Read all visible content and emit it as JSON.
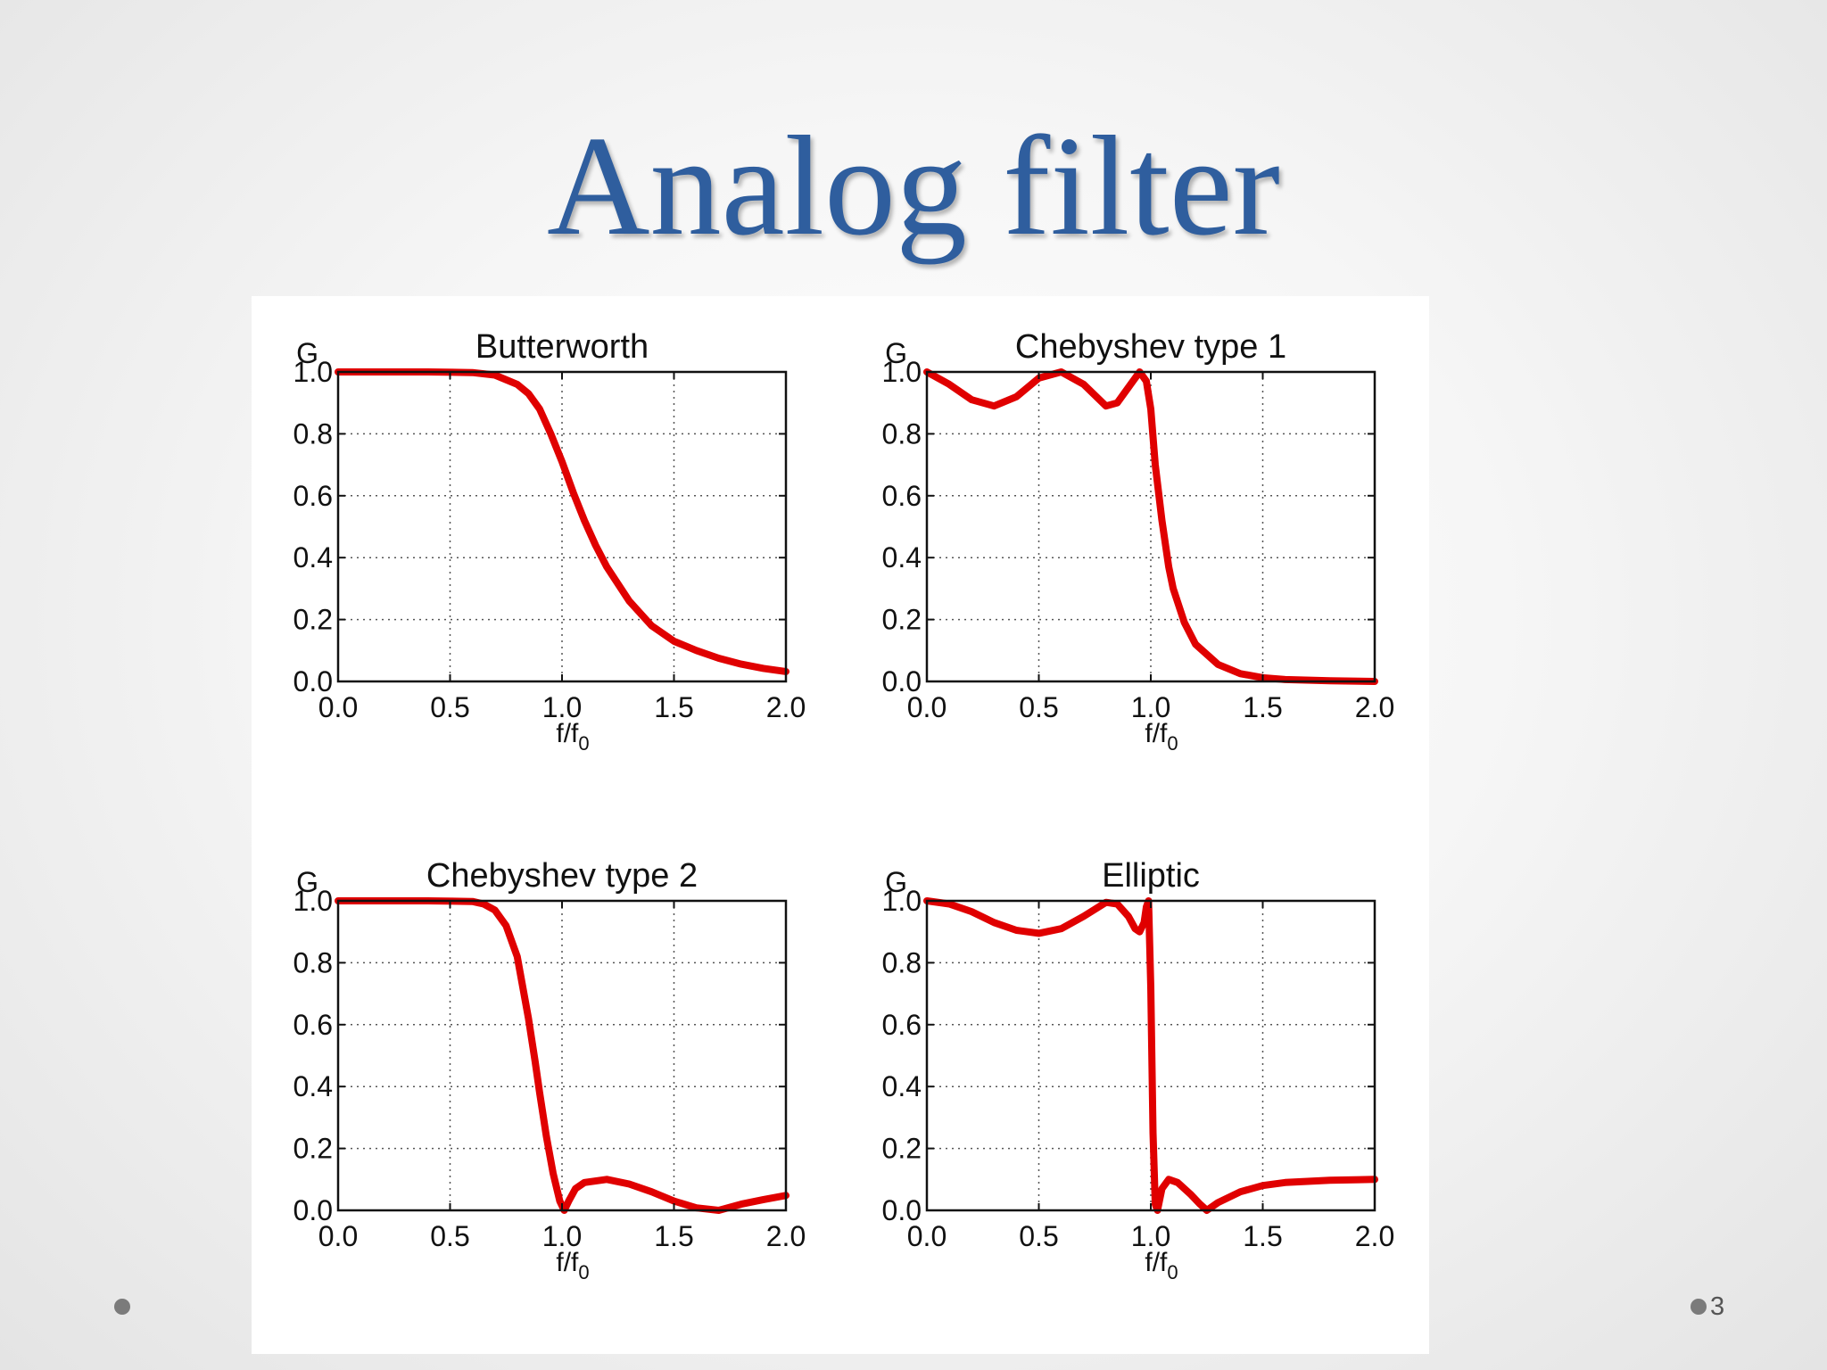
{
  "slide": {
    "title": "Analog filter",
    "page_number": "3"
  },
  "chart_data": [
    {
      "type": "line",
      "title": "Butterworth",
      "xlabel": "f/f",
      "xlabel_subscript": "0",
      "ylabel": "G",
      "xlim": [
        0.0,
        2.0
      ],
      "ylim": [
        0.0,
        1.0
      ],
      "xticks": [
        "0.0",
        "0.5",
        "1.0",
        "1.5",
        "2.0"
      ],
      "yticks": [
        "0.0",
        "0.2",
        "0.4",
        "0.6",
        "0.8",
        "1.0"
      ],
      "grid": true,
      "line_color": "#e00000",
      "series": [
        {
          "x": [
            0.0,
            0.4,
            0.6,
            0.7,
            0.8,
            0.85,
            0.9,
            0.95,
            1.0,
            1.05,
            1.1,
            1.15,
            1.2,
            1.3,
            1.4,
            1.5,
            1.6,
            1.7,
            1.8,
            1.9,
            2.0
          ],
          "y": [
            1.0,
            1.0,
            0.998,
            0.99,
            0.96,
            0.93,
            0.88,
            0.8,
            0.71,
            0.61,
            0.52,
            0.44,
            0.37,
            0.26,
            0.18,
            0.13,
            0.1,
            0.075,
            0.056,
            0.042,
            0.032
          ]
        }
      ]
    },
    {
      "type": "line",
      "title": "Chebyshev type 1",
      "xlabel": "f/f",
      "xlabel_subscript": "0",
      "ylabel": "G",
      "xlim": [
        0.0,
        2.0
      ],
      "ylim": [
        0.0,
        1.0
      ],
      "xticks": [
        "0.0",
        "0.5",
        "1.0",
        "1.5",
        "2.0"
      ],
      "yticks": [
        "0.0",
        "0.2",
        "0.4",
        "0.6",
        "0.8",
        "1.0"
      ],
      "grid": true,
      "line_color": "#e00000",
      "series": [
        {
          "x": [
            0.0,
            0.1,
            0.2,
            0.3,
            0.4,
            0.5,
            0.6,
            0.7,
            0.8,
            0.85,
            0.9,
            0.95,
            0.98,
            1.0,
            1.02,
            1.05,
            1.08,
            1.1,
            1.15,
            1.2,
            1.3,
            1.4,
            1.5,
            1.6,
            1.8,
            2.0
          ],
          "y": [
            1.0,
            0.96,
            0.91,
            0.89,
            0.92,
            0.98,
            1.0,
            0.96,
            0.89,
            0.9,
            0.95,
            1.0,
            0.97,
            0.88,
            0.7,
            0.52,
            0.37,
            0.3,
            0.19,
            0.12,
            0.055,
            0.025,
            0.012,
            0.006,
            0.002,
            0.0
          ]
        }
      ]
    },
    {
      "type": "line",
      "title": "Chebyshev type 2",
      "xlabel": "f/f",
      "xlabel_subscript": "0",
      "ylabel": "G",
      "xlim": [
        0.0,
        2.0
      ],
      "ylim": [
        0.0,
        1.0
      ],
      "xticks": [
        "0.0",
        "0.5",
        "1.0",
        "1.5",
        "2.0"
      ],
      "yticks": [
        "0.0",
        "0.2",
        "0.4",
        "0.6",
        "0.8",
        "1.0"
      ],
      "grid": true,
      "line_color": "#e00000",
      "series": [
        {
          "x": [
            0.0,
            0.4,
            0.6,
            0.65,
            0.7,
            0.75,
            0.8,
            0.85,
            0.88,
            0.9,
            0.93,
            0.96,
            0.99,
            1.01,
            1.03,
            1.06,
            1.1,
            1.2,
            1.3,
            1.4,
            1.5,
            1.6,
            1.7,
            1.8,
            1.9,
            2.0
          ],
          "y": [
            1.0,
            1.0,
            0.998,
            0.99,
            0.97,
            0.92,
            0.82,
            0.62,
            0.48,
            0.38,
            0.24,
            0.12,
            0.03,
            0.0,
            0.03,
            0.07,
            0.09,
            0.1,
            0.085,
            0.06,
            0.03,
            0.008,
            0.0,
            0.02,
            0.035,
            0.048
          ]
        }
      ]
    },
    {
      "type": "line",
      "title": "Elliptic",
      "xlabel": "f/f",
      "xlabel_subscript": "0",
      "ylabel": "G",
      "xlim": [
        0.0,
        2.0
      ],
      "ylim": [
        0.0,
        1.0
      ],
      "xticks": [
        "0.0",
        "0.5",
        "1.0",
        "1.5",
        "2.0"
      ],
      "yticks": [
        "0.0",
        "0.2",
        "0.4",
        "0.6",
        "0.8",
        "1.0"
      ],
      "grid": true,
      "line_color": "#e00000",
      "series": [
        {
          "x": [
            0.0,
            0.1,
            0.2,
            0.3,
            0.4,
            0.5,
            0.6,
            0.7,
            0.8,
            0.85,
            0.9,
            0.93,
            0.95,
            0.97,
            0.98,
            0.99,
            1.0,
            1.01,
            1.02,
            1.03,
            1.05,
            1.08,
            1.12,
            1.18,
            1.22,
            1.25,
            1.3,
            1.4,
            1.5,
            1.6,
            1.8,
            2.0
          ],
          "y": [
            1.0,
            0.99,
            0.965,
            0.93,
            0.905,
            0.895,
            0.91,
            0.95,
            0.995,
            0.99,
            0.95,
            0.91,
            0.9,
            0.93,
            0.98,
            1.0,
            0.72,
            0.25,
            0.02,
            0.0,
            0.07,
            0.1,
            0.09,
            0.05,
            0.02,
            0.0,
            0.025,
            0.06,
            0.08,
            0.09,
            0.097,
            0.1
          ]
        }
      ]
    }
  ]
}
